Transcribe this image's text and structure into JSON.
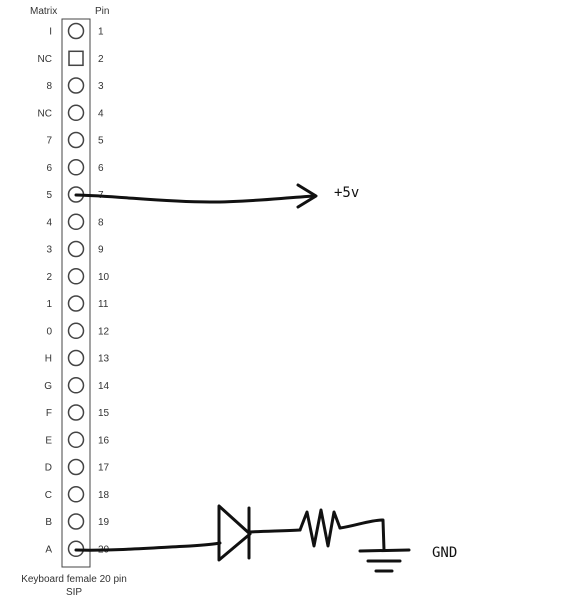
{
  "header": {
    "matrix_label": "Matrix",
    "pin_label": "Pin"
  },
  "pins": [
    {
      "matrix": "I",
      "pin": "1",
      "shape": "circle"
    },
    {
      "matrix": "NC",
      "pin": "2",
      "shape": "square"
    },
    {
      "matrix": "8",
      "pin": "3",
      "shape": "circle"
    },
    {
      "matrix": "NC",
      "pin": "4",
      "shape": "circle"
    },
    {
      "matrix": "7",
      "pin": "5",
      "shape": "circle"
    },
    {
      "matrix": "6",
      "pin": "6",
      "shape": "circle"
    },
    {
      "matrix": "5",
      "pin": "7",
      "shape": "circle"
    },
    {
      "matrix": "4",
      "pin": "8",
      "shape": "circle"
    },
    {
      "matrix": "3",
      "pin": "9",
      "shape": "circle"
    },
    {
      "matrix": "2",
      "pin": "10",
      "shape": "circle"
    },
    {
      "matrix": "1",
      "pin": "11",
      "shape": "circle"
    },
    {
      "matrix": "0",
      "pin": "12",
      "shape": "circle"
    },
    {
      "matrix": "H",
      "pin": "13",
      "shape": "circle"
    },
    {
      "matrix": "G",
      "pin": "14",
      "shape": "circle"
    },
    {
      "matrix": "F",
      "pin": "15",
      "shape": "circle"
    },
    {
      "matrix": "E",
      "pin": "16",
      "shape": "circle"
    },
    {
      "matrix": "D",
      "pin": "17",
      "shape": "circle"
    },
    {
      "matrix": "C",
      "pin": "18",
      "shape": "circle"
    },
    {
      "matrix": "B",
      "pin": "19",
      "shape": "circle"
    },
    {
      "matrix": "A",
      "pin": "20",
      "shape": "circle"
    }
  ],
  "caption": {
    "line1": "Keyboard female 20 pin",
    "line2": "SIP"
  },
  "connections": {
    "power_label": "+5v",
    "ground_label": "GND"
  },
  "colors": {
    "ink": "#111111",
    "outline": "#444444",
    "text": "#333333"
  }
}
